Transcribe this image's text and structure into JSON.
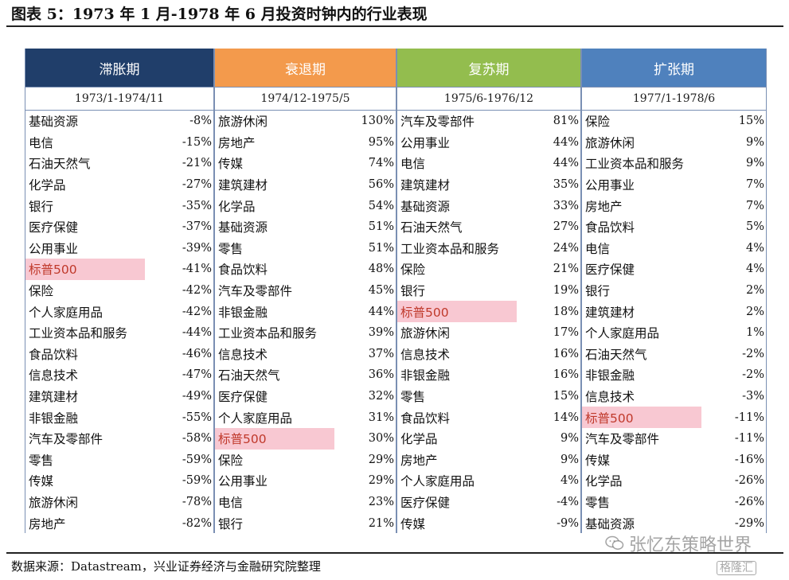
{
  "title": "图表 5：1973 年 1 月-1978 年 6 月投资时钟内的行业表现",
  "columns": [
    {
      "header": "滞胀期",
      "header_color": "#203e6a",
      "period": "1973/1-1974/11",
      "rows": [
        {
          "name": "基础资源",
          "value": "-8%"
        },
        {
          "name": "电信",
          "value": "-15%"
        },
        {
          "name": "石油天然气",
          "value": "-21%"
        },
        {
          "name": "化学品",
          "value": "-27%"
        },
        {
          "name": "银行",
          "value": "-35%"
        },
        {
          "name": "医疗保健",
          "value": "-37%"
        },
        {
          "name": "公用事业",
          "value": "-39%"
        },
        {
          "name": "标普500",
          "value": "-41%",
          "highlight": true
        },
        {
          "name": "保险",
          "value": "-42%"
        },
        {
          "name": "个人家庭用品",
          "value": "-42%"
        },
        {
          "name": "工业资本品和服务",
          "value": "-44%"
        },
        {
          "name": "食品饮料",
          "value": "-46%"
        },
        {
          "name": "信息技术",
          "value": "-47%"
        },
        {
          "name": "建筑建材",
          "value": "-49%"
        },
        {
          "name": "非银金融",
          "value": "-55%"
        },
        {
          "name": "汽车及零部件",
          "value": "-58%"
        },
        {
          "name": "零售",
          "value": "-59%"
        },
        {
          "name": "传媒",
          "value": "-59%"
        },
        {
          "name": "旅游休闲",
          "value": "-78%"
        },
        {
          "name": "房地产",
          "value": "-82%"
        }
      ]
    },
    {
      "header": "衰退期",
      "header_color": "#f39a4c",
      "period": "1974/12-1975/5",
      "rows": [
        {
          "name": "旅游休闲",
          "value": "130%"
        },
        {
          "name": "房地产",
          "value": "95%"
        },
        {
          "name": "传媒",
          "value": "74%"
        },
        {
          "name": "建筑建材",
          "value": "56%"
        },
        {
          "name": "化学品",
          "value": "54%"
        },
        {
          "name": "基础资源",
          "value": "51%"
        },
        {
          "name": "零售",
          "value": "51%"
        },
        {
          "name": "食品饮料",
          "value": "48%"
        },
        {
          "name": "汽车及零部件",
          "value": "45%"
        },
        {
          "name": "非银金融",
          "value": "44%"
        },
        {
          "name": "工业资本品和服务",
          "value": "39%"
        },
        {
          "name": "信息技术",
          "value": "37%"
        },
        {
          "name": "石油天然气",
          "value": "36%"
        },
        {
          "name": "医疗保健",
          "value": "32%"
        },
        {
          "name": "个人家庭用品",
          "value": "31%"
        },
        {
          "name": "标普500",
          "value": "30%",
          "highlight": true
        },
        {
          "name": "保险",
          "value": "29%"
        },
        {
          "name": "公用事业",
          "value": "29%"
        },
        {
          "name": "电信",
          "value": "23%"
        },
        {
          "name": "银行",
          "value": "21%"
        }
      ]
    },
    {
      "header": "复苏期",
      "header_color": "#93bd4e",
      "period": "1975/6-1976/12",
      "rows": [
        {
          "name": "汽车及零部件",
          "value": "81%"
        },
        {
          "name": "公用事业",
          "value": "44%"
        },
        {
          "name": "电信",
          "value": "44%"
        },
        {
          "name": "建筑建材",
          "value": "35%"
        },
        {
          "name": "基础资源",
          "value": "33%"
        },
        {
          "name": "石油天然气",
          "value": "27%"
        },
        {
          "name": "工业资本品和服务",
          "value": "24%"
        },
        {
          "name": "保险",
          "value": "21%"
        },
        {
          "name": "银行",
          "value": "19%"
        },
        {
          "name": "标普500",
          "value": "18%",
          "highlight": true
        },
        {
          "name": "旅游休闲",
          "value": "17%"
        },
        {
          "name": "信息技术",
          "value": "16%"
        },
        {
          "name": "非银金融",
          "value": "16%"
        },
        {
          "name": "零售",
          "value": "15%"
        },
        {
          "name": "食品饮料",
          "value": "14%"
        },
        {
          "name": "化学品",
          "value": "9%"
        },
        {
          "name": "房地产",
          "value": "9%"
        },
        {
          "name": "个人家庭用品",
          "value": "4%"
        },
        {
          "name": "医疗保健",
          "value": "-4%"
        },
        {
          "name": "传媒",
          "value": "-9%"
        }
      ]
    },
    {
      "header": "扩张期",
      "header_color": "#4f81bd",
      "period": "1977/1-1978/6",
      "rows": [
        {
          "name": "保险",
          "value": "15%"
        },
        {
          "name": "旅游休闲",
          "value": "9%"
        },
        {
          "name": "工业资本品和服务",
          "value": "9%"
        },
        {
          "name": "公用事业",
          "value": "7%"
        },
        {
          "name": "房地产",
          "value": "7%"
        },
        {
          "name": "食品饮料",
          "value": "5%"
        },
        {
          "name": "电信",
          "value": "4%"
        },
        {
          "name": "医疗保健",
          "value": "4%"
        },
        {
          "name": "银行",
          "value": "2%"
        },
        {
          "name": "建筑建材",
          "value": "2%"
        },
        {
          "name": "个人家庭用品",
          "value": "1%"
        },
        {
          "name": "石油天然气",
          "value": "-2%"
        },
        {
          "name": "非银金融",
          "value": "-2%"
        },
        {
          "name": "信息技术",
          "value": "-3%"
        },
        {
          "name": "标普500",
          "value": "-11%",
          "highlight": true
        },
        {
          "name": "汽车及零部件",
          "value": "-11%"
        },
        {
          "name": "传媒",
          "value": "-16%"
        },
        {
          "name": "化学品",
          "value": "-26%"
        },
        {
          "name": "零售",
          "value": "-26%"
        },
        {
          "name": "基础资源",
          "value": "-29%"
        }
      ]
    }
  ],
  "source": "数据来源：Datastream，兴业证券经济与金融研究院整理",
  "watermark": "张忆东策略世界",
  "watermark2": "格隆汇",
  "icons": {
    "watermark": "wechat-icon"
  }
}
